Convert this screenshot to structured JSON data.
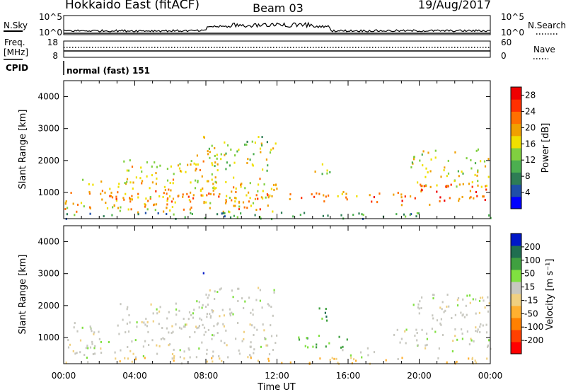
{
  "header": {
    "title": "Hokkaido East (fitACF)",
    "beam": "Beam 03",
    "date": "19/Aug/2017"
  },
  "status_panels": {
    "noise_left": "N.Sky",
    "noise_right": "N.Search",
    "noise_ticks": [
      "10^5",
      "10^0"
    ],
    "freq_label_1": "Freq.",
    "freq_label_2": "[MHz]",
    "freq_ticks": [
      "18",
      "8"
    ],
    "nave_label": "Nave",
    "nave_ticks": [
      "60",
      "0"
    ],
    "cpid_label": "CPID",
    "cpid_value": "normal (fast) 151"
  },
  "colors": {
    "power_scale": [
      "#0000ff",
      "#1f4fa8",
      "#2e7d55",
      "#4caf50",
      "#80d040",
      "#f0e000",
      "#f0a000",
      "#ff7000",
      "#ff3000",
      "#f00000"
    ],
    "velocity_scale": [
      "#ff0000",
      "#ff4000",
      "#ff8000",
      "#ffb030",
      "#f0d080",
      "#c8c8c0",
      "#80e040",
      "#40a040",
      "#1f6e50",
      "#0018c8"
    ]
  },
  "chart_data": [
    {
      "type": "heatmap",
      "panel": "power",
      "xlabel": "Time UT",
      "ylabel": "Slant Range [km]",
      "x_ticks": [
        "00:00",
        "04:00",
        "08:00",
        "12:00",
        "16:00",
        "20:00",
        "00:00"
      ],
      "xlim": [
        0,
        24
      ],
      "ylim": [
        180,
        4500
      ],
      "y_ticks": [
        1000,
        2000,
        3000,
        4000
      ],
      "colorbar_label": "Power [dB]",
      "colorbar_range": [
        0,
        30
      ],
      "colorbar_ticks": [
        4,
        8,
        12,
        16,
        20,
        24,
        28
      ],
      "regions": [
        {
          "t0": 0.0,
          "t1": 12.0,
          "r0": 400,
          "r1": 1500,
          "level": 18
        },
        {
          "t0": 2.0,
          "t1": 6.5,
          "r0": 650,
          "r1": 1100,
          "level": 22
        },
        {
          "t0": 5.0,
          "t1": 11.5,
          "r0": 500,
          "r1": 1000,
          "level": 21
        },
        {
          "t0": 3.0,
          "t1": 9.0,
          "r0": 1300,
          "r1": 2100,
          "level": 17
        },
        {
          "t0": 7.4,
          "t1": 8.3,
          "r0": 1900,
          "r1": 2400,
          "level": 20
        },
        {
          "t0": 7.5,
          "t1": 8.0,
          "r0": 2700,
          "r1": 3000,
          "level": 22
        },
        {
          "t0": 8.0,
          "t1": 12.0,
          "r0": 1700,
          "r1": 2600,
          "level": 15
        },
        {
          "t0": 9.5,
          "t1": 11.5,
          "r0": 2300,
          "r1": 2800,
          "level": 13
        },
        {
          "t0": 12.5,
          "t1": 16.0,
          "r0": 750,
          "r1": 1100,
          "level": 21
        },
        {
          "t0": 15.5,
          "t1": 17.2,
          "r0": 800,
          "r1": 1000,
          "level": 19
        },
        {
          "t0": 14.0,
          "t1": 15.0,
          "r0": 1500,
          "r1": 2000,
          "level": 15
        },
        {
          "t0": 18.5,
          "t1": 24.0,
          "r0": 600,
          "r1": 1300,
          "level": 24
        },
        {
          "t0": 19.5,
          "t1": 24.0,
          "r0": 1200,
          "r1": 2400,
          "level": 16
        },
        {
          "t0": 17.0,
          "t1": 18.5,
          "r0": 700,
          "r1": 1000,
          "level": 23
        },
        {
          "t0": 0.0,
          "t1": 24.0,
          "r0": 200,
          "r1": 400,
          "level": 9
        }
      ]
    },
    {
      "type": "heatmap",
      "panel": "velocity",
      "xlabel": "Time UT",
      "ylabel": "Slant Range [km]",
      "x_ticks": [
        "00:00",
        "04:00",
        "08:00",
        "12:00",
        "16:00",
        "20:00",
        "00:00"
      ],
      "xlim": [
        0,
        24
      ],
      "ylim": [
        180,
        4500
      ],
      "y_ticks": [
        1000,
        2000,
        3000,
        4000
      ],
      "colorbar_label": "Velocity [m s⁻¹]",
      "colorbar_ticks": [
        "200",
        "100",
        "50",
        "15",
        "-15",
        "-50",
        "-100",
        "-200"
      ],
      "regions": [
        {
          "t0": 0.0,
          "t1": 12.0,
          "r0": 400,
          "r1": 1500,
          "level": 0
        },
        {
          "t0": 3.0,
          "t1": 9.0,
          "r0": 1300,
          "r1": 2100,
          "level": 0
        },
        {
          "t0": 7.4,
          "t1": 8.3,
          "r0": 1900,
          "r1": 2400,
          "level": 0
        },
        {
          "t0": 7.6,
          "t1": 7.9,
          "r0": 2800,
          "r1": 3050,
          "level": 220
        },
        {
          "t0": 8.0,
          "t1": 12.0,
          "r0": 1700,
          "r1": 2600,
          "level": 0
        },
        {
          "t0": 12.5,
          "t1": 14.0,
          "r0": 700,
          "r1": 1100,
          "level": 40
        },
        {
          "t0": 14.0,
          "t1": 16.0,
          "r0": 700,
          "r1": 1100,
          "level": 30
        },
        {
          "t0": 14.0,
          "t1": 15.0,
          "r0": 1500,
          "r1": 2000,
          "level": 35
        },
        {
          "t0": 15.5,
          "t1": 17.5,
          "r0": 400,
          "r1": 700,
          "level": 5
        },
        {
          "t0": 18.5,
          "t1": 24.0,
          "r0": 600,
          "r1": 1300,
          "level": 0
        },
        {
          "t0": 19.5,
          "t1": 24.0,
          "r0": 1200,
          "r1": 2400,
          "level": 0
        },
        {
          "t0": 0.0,
          "t1": 24.0,
          "r0": 200,
          "r1": 400,
          "level": -30
        }
      ]
    }
  ]
}
